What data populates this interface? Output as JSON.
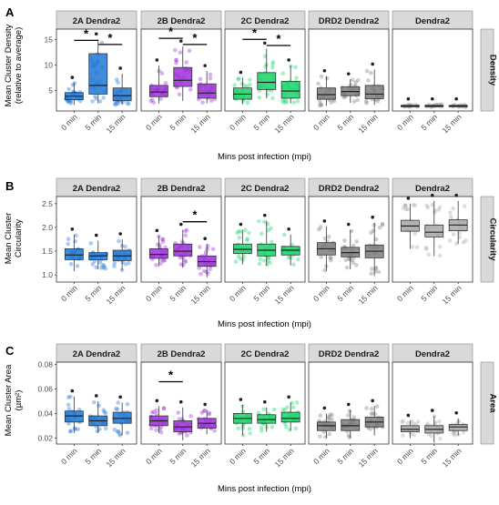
{
  "figure": {
    "x_label": "Mins post infection (mpi)",
    "facet_titles": [
      "2A Dendra2",
      "2B Dendra2",
      "2C Dendra2",
      "DRD2 Dendra2",
      "Dendra2"
    ],
    "time_labels": [
      "0 min",
      "5 min",
      "15 min"
    ],
    "sig_marker": "*",
    "colors": {
      "2A Dendra2": "#1f77d4",
      "2B Dendra2": "#9b30d9",
      "2C Dendra2": "#19d46a",
      "DRD2 Dendra2": "#7d7d7d",
      "Dendra2": "#a9a9a9",
      "strip_bg": "#d9d9d9"
    }
  },
  "chart_data": [
    {
      "panel_label": "A",
      "type": "boxplot",
      "ylabel": "Mean Cluster Density\n(relative to average)",
      "strip_label": "Density",
      "ylim": [
        1,
        17
      ],
      "yticks": [
        "5",
        "10",
        "15"
      ],
      "y_tick_values": [
        5,
        10,
        15
      ],
      "grid": false,
      "series": [
        {
          "name": "2A Dendra2",
          "boxes": [
            {
              "x": "0 min",
              "whisker_low": 2.2,
              "q1": 3.2,
              "median": 3.9,
              "q3": 4.6,
              "whisker_high": 6.5
            },
            {
              "x": "5 min",
              "whisker_low": 2.5,
              "q1": 4.3,
              "median": 6.0,
              "q3": 12.2,
              "whisker_high": 15.0
            },
            {
              "x": "15 min",
              "whisker_low": 2.2,
              "q1": 3.0,
              "median": 4.0,
              "q3": 5.5,
              "whisker_high": 8.3
            }
          ],
          "significance": [
            {
              "from": "0 min",
              "to": "5 min",
              "y": 14.8
            },
            {
              "from": "5 min",
              "to": "15 min",
              "y": 14.0
            }
          ]
        },
        {
          "name": "2B Dendra2",
          "boxes": [
            {
              "x": "0 min",
              "whisker_low": 2.5,
              "q1": 3.8,
              "median": 4.7,
              "q3": 6.0,
              "whisker_high": 9.9
            },
            {
              "x": "5 min",
              "whisker_low": 3.0,
              "q1": 5.8,
              "median": 7.0,
              "q3": 9.5,
              "whisker_high": 13.6
            },
            {
              "x": "15 min",
              "whisker_low": 2.5,
              "q1": 3.5,
              "median": 4.5,
              "q3": 6.3,
              "whisker_high": 8.8
            }
          ],
          "significance": [
            {
              "from": "0 min",
              "to": "5 min",
              "y": 15.2
            },
            {
              "from": "5 min",
              "to": "15 min",
              "y": 14.0
            }
          ]
        },
        {
          "name": "2C Dendra2",
          "boxes": [
            {
              "x": "0 min",
              "whisker_low": 2.3,
              "q1": 3.3,
              "median": 4.3,
              "q3": 5.5,
              "whisker_high": 7.5
            },
            {
              "x": "5 min",
              "whisker_low": 3.5,
              "q1": 5.2,
              "median": 6.6,
              "q3": 8.5,
              "whisker_high": 13.2
            },
            {
              "x": "15 min",
              "whisker_low": 2.5,
              "q1": 3.5,
              "median": 4.9,
              "q3": 6.8,
              "whisker_high": 9.9
            }
          ],
          "significance": [
            {
              "from": "0 min",
              "to": "5 min",
              "y": 15.0
            },
            {
              "from": "5 min",
              "to": "15 min",
              "y": 13.8
            }
          ]
        },
        {
          "name": "DRD2 Dendra2",
          "boxes": [
            {
              "x": "0 min",
              "whisker_low": 2.0,
              "q1": 3.3,
              "median": 4.2,
              "q3": 5.5,
              "whisker_high": 7.8
            },
            {
              "x": "5 min",
              "whisker_low": 2.6,
              "q1": 4.0,
              "median": 4.8,
              "q3": 5.7,
              "whisker_high": 7.2
            },
            {
              "x": "15 min",
              "whisker_low": 2.2,
              "q1": 3.4,
              "median": 4.3,
              "q3": 6.0,
              "whisker_high": 9.1
            }
          ],
          "significance": []
        },
        {
          "name": "Dendra2",
          "boxes": [
            {
              "x": "0 min",
              "whisker_low": 1.8,
              "q1": 1.9,
              "median": 2.0,
              "q3": 2.1,
              "whisker_high": 2.3
            },
            {
              "x": "5 min",
              "whisker_low": 1.8,
              "q1": 1.9,
              "median": 2.0,
              "q3": 2.1,
              "whisker_high": 2.3
            },
            {
              "x": "15 min",
              "whisker_low": 1.8,
              "q1": 1.9,
              "median": 2.0,
              "q3": 2.1,
              "whisker_high": 2.3
            }
          ],
          "significance": []
        }
      ]
    },
    {
      "panel_label": "B",
      "type": "boxplot",
      "ylabel": "Mean Cluster\nCircularity",
      "strip_label": "Circularity",
      "ylim": [
        0.85,
        2.65
      ],
      "yticks": [
        "1.0",
        "1.5",
        "2.0",
        "2.5"
      ],
      "y_tick_values": [
        1.0,
        1.5,
        2.0,
        2.5
      ],
      "grid": false,
      "series": [
        {
          "name": "2A Dendra2",
          "boxes": [
            {
              "x": "0 min",
              "whisker_low": 1.08,
              "q1": 1.32,
              "median": 1.42,
              "q3": 1.55,
              "whisker_high": 1.85
            },
            {
              "x": "5 min",
              "whisker_low": 1.12,
              "q1": 1.32,
              "median": 1.4,
              "q3": 1.47,
              "whisker_high": 1.72
            },
            {
              "x": "15 min",
              "whisker_low": 1.1,
              "q1": 1.3,
              "median": 1.4,
              "q3": 1.52,
              "whisker_high": 1.75
            }
          ],
          "significance": []
        },
        {
          "name": "2B Dendra2",
          "boxes": [
            {
              "x": "0 min",
              "whisker_low": 1.18,
              "q1": 1.35,
              "median": 1.43,
              "q3": 1.55,
              "whisker_high": 1.82
            },
            {
              "x": "5 min",
              "whisker_low": 1.15,
              "q1": 1.4,
              "median": 1.5,
              "q3": 1.65,
              "whisker_high": 1.95
            },
            {
              "x": "15 min",
              "whisker_low": 0.95,
              "q1": 1.18,
              "median": 1.28,
              "q3": 1.4,
              "whisker_high": 1.65
            }
          ],
          "significance": [
            {
              "from": "5 min",
              "to": "15 min",
              "y": 2.12
            }
          ]
        },
        {
          "name": "2C Dendra2",
          "boxes": [
            {
              "x": "0 min",
              "whisker_low": 1.22,
              "q1": 1.45,
              "median": 1.54,
              "q3": 1.65,
              "whisker_high": 1.95
            },
            {
              "x": "5 min",
              "whisker_low": 1.2,
              "q1": 1.4,
              "median": 1.52,
              "q3": 1.65,
              "whisker_high": 2.14
            },
            {
              "x": "15 min",
              "whisker_low": 1.2,
              "q1": 1.42,
              "median": 1.52,
              "q3": 1.6,
              "whisker_high": 1.85
            }
          ],
          "significance": []
        },
        {
          "name": "DRD2 Dendra2",
          "boxes": [
            {
              "x": "0 min",
              "whisker_low": 1.08,
              "q1": 1.42,
              "median": 1.55,
              "q3": 1.68,
              "whisker_high": 2.02
            },
            {
              "x": "5 min",
              "whisker_low": 1.12,
              "q1": 1.38,
              "median": 1.47,
              "q3": 1.58,
              "whisker_high": 1.95
            },
            {
              "x": "15 min",
              "whisker_low": 0.98,
              "q1": 1.36,
              "median": 1.5,
              "q3": 1.63,
              "whisker_high": 2.1
            }
          ],
          "significance": []
        },
        {
          "name": "Dendra2",
          "boxes": [
            {
              "x": "0 min",
              "whisker_low": 1.55,
              "q1": 1.92,
              "median": 2.03,
              "q3": 2.15,
              "whisker_high": 2.5
            },
            {
              "x": "5 min",
              "whisker_low": 1.4,
              "q1": 1.8,
              "median": 1.9,
              "q3": 2.05,
              "whisker_high": 2.56
            },
            {
              "x": "15 min",
              "whisker_low": 1.65,
              "q1": 1.93,
              "median": 2.05,
              "q3": 2.16,
              "whisker_high": 2.56
            }
          ],
          "significance": []
        }
      ]
    },
    {
      "panel_label": "C",
      "type": "boxplot",
      "ylabel": "Mean Cluster Area\n(µm²)",
      "strip_label": "Area",
      "ylim": [
        0.015,
        0.082
      ],
      "yticks": [
        "0.02",
        "0.04",
        "0.06",
        "0.08"
      ],
      "y_tick_values": [
        0.02,
        0.04,
        0.06,
        0.08
      ],
      "grid": false,
      "series": [
        {
          "name": "2A Dendra2",
          "boxes": [
            {
              "x": "0 min",
              "whisker_low": 0.024,
              "q1": 0.033,
              "median": 0.038,
              "q3": 0.042,
              "whisker_high": 0.054
            },
            {
              "x": "5 min",
              "whisker_low": 0.024,
              "q1": 0.03,
              "median": 0.034,
              "q3": 0.038,
              "whisker_high": 0.05
            },
            {
              "x": "15 min",
              "whisker_low": 0.022,
              "q1": 0.032,
              "median": 0.036,
              "q3": 0.041,
              "whisker_high": 0.049
            }
          ],
          "significance": []
        },
        {
          "name": "2B Dendra2",
          "boxes": [
            {
              "x": "0 min",
              "whisker_low": 0.024,
              "q1": 0.03,
              "median": 0.034,
              "q3": 0.038,
              "whisker_high": 0.046
            },
            {
              "x": "5 min",
              "whisker_low": 0.018,
              "q1": 0.025,
              "median": 0.029,
              "q3": 0.034,
              "whisker_high": 0.045
            },
            {
              "x": "15 min",
              "whisker_low": 0.023,
              "q1": 0.028,
              "median": 0.032,
              "q3": 0.036,
              "whisker_high": 0.043
            }
          ],
          "significance": [
            {
              "from": "0 min",
              "to": "5 min",
              "y": 0.066
            }
          ]
        },
        {
          "name": "2C Dendra2",
          "boxes": [
            {
              "x": "0 min",
              "whisker_low": 0.022,
              "q1": 0.032,
              "median": 0.036,
              "q3": 0.04,
              "whisker_high": 0.047
            },
            {
              "x": "5 min",
              "whisker_low": 0.025,
              "q1": 0.032,
              "median": 0.035,
              "q3": 0.039,
              "whisker_high": 0.045
            },
            {
              "x": "15 min",
              "whisker_low": 0.026,
              "q1": 0.033,
              "median": 0.036,
              "q3": 0.041,
              "whisker_high": 0.049
            }
          ],
          "significance": []
        },
        {
          "name": "DRD2 Dendra2",
          "boxes": [
            {
              "x": "0 min",
              "whisker_low": 0.02,
              "q1": 0.026,
              "median": 0.03,
              "q3": 0.033,
              "whisker_high": 0.04
            },
            {
              "x": "5 min",
              "whisker_low": 0.02,
              "q1": 0.026,
              "median": 0.03,
              "q3": 0.035,
              "whisker_high": 0.043
            },
            {
              "x": "15 min",
              "whisker_low": 0.022,
              "q1": 0.029,
              "median": 0.033,
              "q3": 0.037,
              "whisker_high": 0.046
            }
          ],
          "significance": []
        },
        {
          "name": "Dendra2",
          "boxes": [
            {
              "x": "0 min",
              "whisker_low": 0.02,
              "q1": 0.025,
              "median": 0.027,
              "q3": 0.03,
              "whisker_high": 0.034
            },
            {
              "x": "5 min",
              "whisker_low": 0.016,
              "q1": 0.024,
              "median": 0.027,
              "q3": 0.03,
              "whisker_high": 0.038
            },
            {
              "x": "15 min",
              "whisker_low": 0.022,
              "q1": 0.026,
              "median": 0.029,
              "q3": 0.031,
              "whisker_high": 0.036
            }
          ],
          "significance": []
        }
      ]
    }
  ]
}
